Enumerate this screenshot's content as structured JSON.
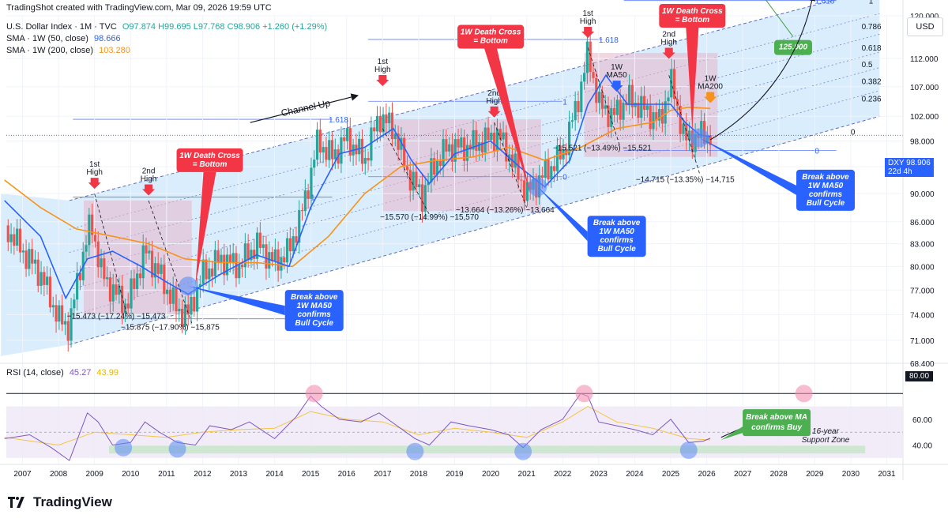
{
  "header": {
    "title": "TradingShot created with TradingView.com, Mar 09, 2026 19:59 UTC",
    "symbol_line": "U.S. Dollar Index · 1M · TVC",
    "ohlc": "O97.874  H99.695  L97.768  C98.906  +1.260 (+1.29%)",
    "sma50": {
      "label": "SMA · 1W (50, close)",
      "value": "98.666",
      "color": "#2962ff"
    },
    "sma200": {
      "label": "SMA · 1W (200, close)",
      "value": "103.280",
      "color": "#f7931a"
    },
    "currency": "USD"
  },
  "last_price": {
    "symbol": "DXY",
    "value": "98.906",
    "countdown": "22d 4h"
  },
  "rsi_panel": {
    "label": "RSI (14, close)",
    "rsi_value": "45.27",
    "ma_value": "43.99",
    "level_label": "80.00"
  },
  "branding": {
    "logo_text": "TradingView"
  },
  "colors": {
    "candle_up": "#26a69a",
    "candle_down": "#ef5350",
    "sma50": "#2962ff",
    "sma200": "#f7931a",
    "rsi_line": "#7e57c2",
    "rsi_ma": "#f4c542",
    "channel_fill": "#bbdefb",
    "zone_fill": "#e8b4c8",
    "callout_red": "#f23645",
    "callout_blue": "#2962ff",
    "callout_green": "#4caf50"
  },
  "chart_data": [
    {
      "type": "candlestick",
      "title": "U.S. Dollar Index",
      "x_axis_labels": [
        "2007",
        "2008",
        "2009",
        "2010",
        "2011",
        "2012",
        "2013",
        "2014",
        "2015",
        "2016",
        "2017",
        "2018",
        "2019",
        "2020",
        "2021",
        "2022",
        "2023",
        "2024",
        "2025",
        "2026",
        "2027",
        "2028",
        "2029",
        "2030",
        "2031"
      ],
      "y_axis_labels": [
        "68.400",
        "71.000",
        "74.000",
        "77.000",
        "80.000",
        "83.000",
        "86.000",
        "90.000",
        "94.000",
        "98.000",
        "102.000",
        "107.000",
        "112.000",
        "120.000"
      ],
      "ylim": [
        68.4,
        120
      ],
      "y_scale": "log",
      "series": [
        {
          "name": "DXY",
          "x": [
            2006.5,
            2007,
            2007.5,
            2008,
            2008.3,
            2008.6,
            2008.9,
            2009.2,
            2009.5,
            2009.9,
            2010.4,
            2010.8,
            2011.3,
            2011.6,
            2012.0,
            2012.5,
            2013.0,
            2013.5,
            2014.0,
            2014.4,
            2014.8,
            2015.2,
            2015.6,
            2016.0,
            2016.5,
            2016.9,
            2017.3,
            2017.7,
            2018.1,
            2018.4,
            2018.8,
            2019.3,
            2019.8,
            2020.2,
            2020.5,
            2021.0,
            2021.5,
            2022.0,
            2022.4,
            2022.7,
            2023.0,
            2023.4,
            2023.8,
            2024.3,
            2024.7,
            2025.0,
            2025.4,
            2025.8,
            2026.1
          ],
          "close": [
            85.5,
            82,
            79,
            73.5,
            72.5,
            80,
            86,
            79,
            77,
            75,
            82,
            79,
            74.5,
            74,
            79,
            81,
            80,
            83,
            80.5,
            82,
            88,
            98,
            95.5,
            98.5,
            95,
            102,
            100,
            93,
            89.5,
            94,
            97,
            97,
            98,
            99,
            96,
            90,
            93,
            96,
            104,
            113,
            104,
            102,
            105,
            103,
            101,
            108,
            98,
            99,
            98.9
          ]
        },
        {
          "name": "SMA · 1W (50, close)",
          "x": [
            2006.5,
            2007.5,
            2008.2,
            2008.8,
            2009.5,
            2010.3,
            2011.0,
            2011.6,
            2012.5,
            2013.5,
            2014.4,
            2015.0,
            2015.8,
            2016.5,
            2017.3,
            2017.8,
            2018.3,
            2019.0,
            2020.0,
            2020.8,
            2021.5,
            2022.2,
            2022.7,
            2023.2,
            2023.8,
            2024.5,
            2025.0,
            2025.4,
            2025.8,
            2026.1
          ],
          "values": [
            89,
            84,
            76,
            81,
            82,
            80,
            78,
            76.5,
            79,
            81.5,
            80,
            88,
            96,
            97,
            100,
            95,
            91.5,
            96,
            98,
            94,
            91,
            95,
            104,
            109,
            104,
            104,
            104,
            101,
            99,
            98.7
          ]
        },
        {
          "name": "SMA · 1W (200, close)",
          "x": [
            2006.5,
            2007.5,
            2008.5,
            2009.5,
            2010.5,
            2011.5,
            2012.5,
            2013.5,
            2014.5,
            2015.5,
            2016.5,
            2017.5,
            2018.5,
            2019.5,
            2020.5,
            2021.5,
            2022.5,
            2023.5,
            2024.5,
            2025.0,
            2025.5,
            2026.1
          ],
          "values": [
            92,
            88,
            85,
            84,
            83,
            81,
            80.5,
            80.5,
            80,
            84,
            90,
            94,
            95,
            95.5,
            97,
            95,
            97,
            100,
            101,
            103,
            103.5,
            103.3
          ]
        }
      ],
      "channel": {
        "top_line": [
          [
            2008.3,
            89
          ],
          [
            2030.8,
            125.5
          ]
        ],
        "bottom_line": [
          [
            2008.3,
            70.5
          ],
          [
            2030.8,
            102
          ]
        ],
        "fib_levels": [
          "1.618",
          "1",
          "0.786",
          "0.618",
          "0.5",
          "0.382",
          "0.236",
          "0"
        ]
      },
      "fib_labels": [
        {
          "label": "1.618",
          "x": 2015.5,
          "y": 101.5
        },
        {
          "label": "1",
          "x": 2015.0,
          "y": 89.5
        },
        {
          "label": "0",
          "x": 2015.0,
          "y": 73.5
        },
        {
          "label": "1.618",
          "x": 2023.0,
          "y": 115.5
        },
        {
          "label": "1",
          "x": 2022.0,
          "y": 104.5
        },
        {
          "label": "0",
          "x": 2022.0,
          "y": 92.5
        },
        {
          "label": "1.618",
          "x": 2029.0,
          "y": 123
        },
        {
          "label": "0",
          "x": 2029.0,
          "y": 96.5
        },
        {
          "label": "1",
          "x": 2030.5,
          "y": 123
        },
        {
          "label": "0.786",
          "x": 2030.3,
          "y": 118
        },
        {
          "label": "0.618",
          "x": 2030.3,
          "y": 114
        },
        {
          "label": "0.5",
          "x": 2030.3,
          "y": 111
        },
        {
          "label": "0.382",
          "x": 2030.3,
          "y": 108
        },
        {
          "label": "0.236",
          "x": 2030.3,
          "y": 105
        },
        {
          "label": "0",
          "x": 2030.0,
          "y": 99.5
        }
      ],
      "annotations": [
        {
          "text": "1st High",
          "x": 2009.0,
          "y": 94
        },
        {
          "text": "2nd High",
          "x": 2010.5,
          "y": 93
        },
        {
          "text": "1st High",
          "x": 2017.0,
          "y": 111
        },
        {
          "text": "2nd High",
          "x": 2020.1,
          "y": 105.5
        },
        {
          "text": "1st High",
          "x": 2022.7,
          "y": 120
        },
        {
          "text": "2nd High",
          "x": 2024.95,
          "y": 116
        },
        {
          "text": "1W MA50",
          "x": 2023.5,
          "y": 110
        },
        {
          "text": "1W MA200",
          "x": 2026.1,
          "y": 108
        },
        {
          "text": "−15.473 (−17.24%) −15,473",
          "x": 2009.6,
          "y": 73.5
        },
        {
          "text": "−15.875 (−17.90%) −15,875",
          "x": 2011.1,
          "y": 72.2
        },
        {
          "text": "−15.570 (−14.99%) −15,570",
          "x": 2018.3,
          "y": 86.3
        },
        {
          "text": "−13.664 (−13.26%) −13,664",
          "x": 2020.4,
          "y": 87.3
        },
        {
          "text": "−15.521 (−13.49%) −15,521",
          "x": 2023.1,
          "y": 96.5
        },
        {
          "text": "−14.715 (−13.35%) −14,715",
          "x": 2025.4,
          "y": 91.7
        },
        {
          "text": "Channel Up",
          "x": 2014.2,
          "y": 102
        }
      ],
      "callouts": [
        {
          "kind": "death-cross",
          "lines": [
            "1W Death Cross",
            "= Bottom"
          ],
          "x": 2012.2,
          "y": 95
        },
        {
          "kind": "death-cross",
          "lines": [
            "1W Death Cross",
            "= Bottom"
          ],
          "x": 2020.0,
          "y": 116
        },
        {
          "kind": "death-cross",
          "lines": [
            "1W Death Cross",
            "= Bottom"
          ],
          "x": 2025.6,
          "y": 120
        },
        {
          "kind": "bull-cycle",
          "lines": [
            "Break above",
            "1W MA50",
            "confirms",
            "Bull Cycle"
          ],
          "x": 2015.1,
          "y": 74.5
        },
        {
          "kind": "bull-cycle",
          "lines": [
            "Break above",
            "1W MA50",
            "confirms",
            "Bull Cycle"
          ],
          "x": 2023.5,
          "y": 84
        },
        {
          "kind": "bull-cycle",
          "lines": [
            "Break above",
            "1W MA50",
            "confirms",
            "Bull Cycle"
          ],
          "x": 2029.3,
          "y": 90.5
        },
        {
          "kind": "target",
          "lines": [
            "125.000"
          ],
          "x": 2028.4,
          "y": 114
        }
      ]
    },
    {
      "type": "line",
      "title": "RSI (14, close)",
      "y_axis_labels": [
        "40.00",
        "60.00",
        "80.00"
      ],
      "ylim": [
        25,
        90
      ],
      "series": [
        {
          "name": "RSI",
          "x": [
            2006.5,
            2007.2,
            2007.8,
            2008.3,
            2008.8,
            2009.1,
            2009.5,
            2010.0,
            2010.4,
            2010.8,
            2011.3,
            2011.8,
            2012.2,
            2012.8,
            2013.3,
            2014.0,
            2014.6,
            2015.0,
            2015.3,
            2015.8,
            2016.4,
            2016.9,
            2017.4,
            2017.9,
            2018.3,
            2018.9,
            2019.4,
            2020.0,
            2020.5,
            2020.9,
            2021.4,
            2022.0,
            2022.5,
            2022.7,
            2023.0,
            2023.5,
            2024.0,
            2024.5,
            2025.0,
            2025.5,
            2025.9,
            2026.1
          ],
          "values": [
            45,
            48,
            38,
            28,
            65,
            58,
            40,
            42,
            58,
            50,
            42,
            40,
            55,
            52,
            58,
            45,
            62,
            78,
            70,
            60,
            58,
            65,
            55,
            45,
            40,
            58,
            55,
            52,
            48,
            38,
            52,
            60,
            80,
            78,
            58,
            55,
            52,
            48,
            60,
            42,
            43,
            45.27
          ]
        },
        {
          "name": "RSI MA",
          "x": [
            2006.5,
            2008.0,
            2009.0,
            2010.0,
            2011.0,
            2012.0,
            2013.0,
            2014.0,
            2015.0,
            2016.0,
            2017.0,
            2018.0,
            2019.0,
            2020.0,
            2021.0,
            2022.0,
            2022.7,
            2023.5,
            2024.5,
            2025.5,
            2026.1
          ],
          "values": [
            46,
            40,
            50,
            48,
            46,
            50,
            52,
            53,
            66,
            60,
            58,
            48,
            53,
            50,
            46,
            58,
            70,
            58,
            53,
            45,
            43.99
          ]
        }
      ],
      "annotations": [
        {
          "text": "Break above MA confirms Buy",
          "x": 2027.7,
          "y": 58
        },
        {
          "text": "16-year Support Zone",
          "x": 2029.3,
          "y": 44
        }
      ]
    }
  ]
}
